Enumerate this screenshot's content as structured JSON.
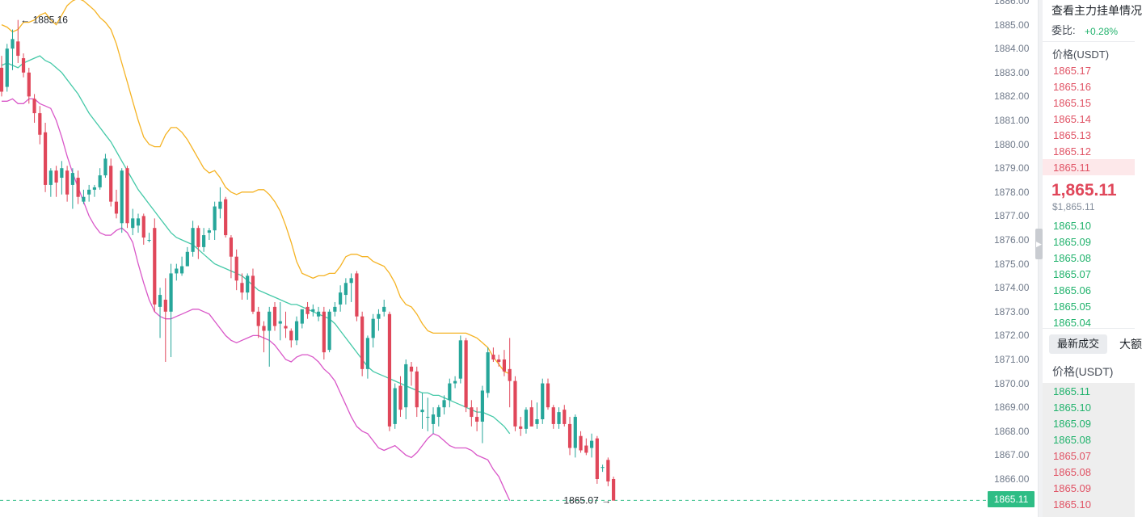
{
  "colors": {
    "up": "#26a69a",
    "down": "#e0475a",
    "ma_line": "#45c9a8",
    "upper_band": "#f5b324",
    "lower_band": "#d957c8",
    "last_price_tag": "#2ebd85"
  },
  "chart_data": {
    "type": "candlestick",
    "y_range": [
      1864.5,
      1886.0
    ],
    "y_ticks": [
      "1886.00",
      "1885.00",
      "1884.00",
      "1883.00",
      "1882.00",
      "1881.00",
      "1880.00",
      "1879.00",
      "1878.00",
      "1877.00",
      "1876.00",
      "1875.00",
      "1874.00",
      "1873.00",
      "1872.00",
      "1871.00",
      "1870.00",
      "1869.00",
      "1868.00",
      "1867.00",
      "1866.00"
    ],
    "high_annotation": "← 1885.16",
    "low_annotation": "1865.07 →",
    "last_price": "1865.11",
    "series": [
      {
        "type": "line",
        "key": "upper",
        "values": [
          1885.0,
          1884.9,
          1884.7,
          1884.8,
          1885.1,
          1885.1,
          1885.2,
          1885.4,
          1885.5,
          1885.2,
          1885.0,
          1885.4,
          1885.8,
          1886.0,
          1886.1,
          1886.0,
          1885.8,
          1885.6,
          1885.3,
          1885.1,
          1884.8,
          1884.2,
          1883.4,
          1882.6,
          1881.8,
          1881.0,
          1880.3,
          1880.0,
          1879.9,
          1879.9,
          1880.4,
          1880.7,
          1880.7,
          1880.5,
          1880.2,
          1879.8,
          1879.4,
          1879.0,
          1878.8,
          1878.9,
          1878.6,
          1878.2,
          1878.0,
          1877.9,
          1878.0,
          1878.0,
          1878.0,
          1878.1,
          1878.1,
          1877.9,
          1877.6,
          1877.2,
          1876.6,
          1875.9,
          1875.1,
          1874.6,
          1874.5,
          1874.4,
          1874.5,
          1874.5,
          1874.6,
          1874.6,
          1874.9,
          1875.3,
          1875.4,
          1875.4,
          1875.3,
          1875.3,
          1875.1,
          1875.0,
          1874.9,
          1874.6,
          1874.2,
          1873.6,
          1873.3,
          1873.2,
          1872.9,
          1872.5,
          1872.2,
          1872.1,
          1872.1,
          1872.1,
          1872.1,
          1872.1,
          1872.1,
          1872.1,
          1872.0,
          1871.9,
          1871.7,
          1871.5,
          1871.1,
          1870.8,
          1870.5,
          1870.4
        ]
      },
      {
        "type": "line",
        "key": "ma",
        "values": [
          1883.3,
          1883.4,
          1883.3,
          1883.2,
          1883.4,
          1883.5,
          1883.6,
          1883.7,
          1883.5,
          1883.4,
          1883.2,
          1883.0,
          1882.7,
          1882.4,
          1882.1,
          1881.7,
          1881.3,
          1881.0,
          1880.7,
          1880.4,
          1880.1,
          1879.7,
          1879.3,
          1878.9,
          1878.5,
          1878.1,
          1877.8,
          1877.5,
          1877.2,
          1876.9,
          1876.6,
          1876.3,
          1876.1,
          1876.0,
          1875.9,
          1875.8,
          1875.6,
          1875.4,
          1875.2,
          1875.0,
          1874.9,
          1874.8,
          1874.7,
          1874.6,
          1874.5,
          1874.3,
          1874.1,
          1873.9,
          1873.8,
          1873.7,
          1873.6,
          1873.5,
          1873.4,
          1873.3,
          1873.3,
          1873.2,
          1873.1,
          1873.0,
          1872.9,
          1872.8,
          1872.7,
          1872.5,
          1872.2,
          1871.9,
          1871.6,
          1871.3,
          1871.0,
          1870.7,
          1870.5,
          1870.4,
          1870.3,
          1870.2,
          1870.1,
          1870.0,
          1869.9,
          1869.8,
          1869.7,
          1869.6,
          1869.6,
          1869.5,
          1869.5,
          1869.4,
          1869.3,
          1869.2,
          1869.1,
          1869.0,
          1868.9,
          1868.8,
          1868.8,
          1868.7,
          1868.6,
          1868.4,
          1868.2,
          1867.9
        ]
      },
      {
        "type": "line",
        "key": "lower",
        "values": [
          1881.8,
          1881.8,
          1881.9,
          1881.7,
          1881.7,
          1881.9,
          1881.9,
          1881.7,
          1881.6,
          1881.5,
          1881.0,
          1880.3,
          1879.5,
          1878.8,
          1878.2,
          1877.6,
          1877.0,
          1876.6,
          1876.3,
          1876.2,
          1876.2,
          1876.4,
          1876.5,
          1876.3,
          1875.9,
          1875.0,
          1874.2,
          1873.5,
          1873.0,
          1872.8,
          1872.7,
          1872.7,
          1872.8,
          1872.9,
          1873.0,
          1873.1,
          1873.1,
          1873.0,
          1872.9,
          1872.6,
          1872.3,
          1872.0,
          1871.8,
          1871.7,
          1871.8,
          1871.9,
          1872.0,
          1872.0,
          1871.9,
          1871.8,
          1871.6,
          1871.3,
          1871.0,
          1870.9,
          1871.1,
          1871.2,
          1871.2,
          1871.1,
          1870.9,
          1870.6,
          1870.4,
          1870.1,
          1869.6,
          1869.1,
          1868.6,
          1868.2,
          1868.0,
          1867.9,
          1867.6,
          1867.3,
          1867.2,
          1867.3,
          1867.4,
          1867.2,
          1867.0,
          1866.9,
          1867.1,
          1867.4,
          1867.7,
          1867.9,
          1867.8,
          1867.6,
          1867.4,
          1867.3,
          1867.3,
          1867.3,
          1867.2,
          1867.0,
          1866.9,
          1866.8,
          1866.4,
          1866.1,
          1865.6,
          1865.1
        ]
      },
      {
        "type": "candle",
        "key": "ohlc",
        "values": [
          [
            1883.2,
            1883.7,
            1882.0,
            1882.2
          ],
          [
            1882.4,
            1884.2,
            1882.2,
            1884.0
          ],
          [
            1884.0,
            1884.8,
            1883.1,
            1884.4
          ],
          [
            1884.3,
            1885.2,
            1883.4,
            1883.7
          ],
          [
            1883.6,
            1883.8,
            1882.8,
            1883.0
          ],
          [
            1883.0,
            1883.2,
            1881.7,
            1882.0
          ],
          [
            1881.9,
            1882.1,
            1880.9,
            1881.3
          ],
          [
            1881.3,
            1881.6,
            1880.0,
            1880.4
          ],
          [
            1880.5,
            1880.9,
            1878.0,
            1878.3
          ],
          [
            1878.3,
            1879.0,
            1877.8,
            1878.9
          ],
          [
            1878.9,
            1879.1,
            1877.8,
            1878.4
          ],
          [
            1878.6,
            1879.3,
            1877.9,
            1879.0
          ],
          [
            1878.9,
            1879.1,
            1877.6,
            1877.9
          ],
          [
            1878.3,
            1879.0,
            1877.3,
            1878.8
          ],
          [
            1878.6,
            1878.9,
            1877.5,
            1877.8
          ],
          [
            1877.6,
            1878.1,
            1877.5,
            1877.8
          ],
          [
            1877.9,
            1878.3,
            1877.6,
            1878.1
          ],
          [
            1878.1,
            1878.3,
            1877.8,
            1878.2
          ],
          [
            1878.2,
            1879.0,
            1878.1,
            1878.7
          ],
          [
            1878.7,
            1879.6,
            1878.6,
            1879.4
          ],
          [
            1879.1,
            1879.4,
            1877.4,
            1877.6
          ],
          [
            1877.6,
            1878.1,
            1876.9,
            1877.1
          ],
          [
            1876.7,
            1879.0,
            1876.3,
            1878.9
          ],
          [
            1879.0,
            1879.1,
            1876.5,
            1876.7
          ],
          [
            1876.5,
            1877.3,
            1876.2,
            1876.9
          ],
          [
            1876.6,
            1877.1,
            1876.3,
            1876.9
          ],
          [
            1877.0,
            1877.1,
            1875.8,
            1876.1
          ],
          [
            1876.0,
            1876.3,
            1875.9,
            1876.0
          ],
          [
            1876.5,
            1876.9,
            1873.0,
            1873.3
          ],
          [
            1873.2,
            1874.0,
            1871.9,
            1873.7
          ],
          [
            1873.5,
            1874.4,
            1870.9,
            1873.0
          ],
          [
            1873.0,
            1875.0,
            1871.1,
            1874.6
          ],
          [
            1874.6,
            1875.0,
            1874.3,
            1874.8
          ],
          [
            1874.6,
            1875.3,
            1874.5,
            1874.9
          ],
          [
            1874.9,
            1875.7,
            1874.9,
            1875.5
          ],
          [
            1875.5,
            1876.8,
            1875.3,
            1876.5
          ],
          [
            1876.5,
            1876.6,
            1875.2,
            1875.7
          ],
          [
            1875.7,
            1876.5,
            1875.5,
            1876.2
          ],
          [
            1876.3,
            1876.5,
            1876.0,
            1876.4
          ],
          [
            1876.4,
            1877.6,
            1876.0,
            1877.4
          ],
          [
            1877.3,
            1878.2,
            1876.9,
            1877.6
          ],
          [
            1877.7,
            1877.8,
            1876.1,
            1876.2
          ],
          [
            1876.1,
            1876.2,
            1874.4,
            1875.3
          ],
          [
            1875.3,
            1875.6,
            1873.9,
            1874.3
          ],
          [
            1874.2,
            1874.6,
            1873.5,
            1873.8
          ],
          [
            1873.8,
            1874.6,
            1873.5,
            1874.5
          ],
          [
            1874.5,
            1874.8,
            1872.9,
            1873.0
          ],
          [
            1873.0,
            1873.2,
            1871.9,
            1872.4
          ],
          [
            1872.4,
            1872.6,
            1871.3,
            1872.2
          ],
          [
            1872.2,
            1873.2,
            1870.7,
            1873.0
          ],
          [
            1873.2,
            1873.4,
            1872.2,
            1872.4
          ],
          [
            1872.5,
            1873.4,
            1871.8,
            1872.6
          ],
          [
            1872.4,
            1873.0,
            1871.9,
            1872.3
          ],
          [
            1872.2,
            1872.3,
            1871.5,
            1871.8
          ],
          [
            1871.8,
            1872.8,
            1871.6,
            1872.6
          ],
          [
            1872.5,
            1873.1,
            1872.3,
            1873.1
          ],
          [
            1873.2,
            1873.4,
            1872.7,
            1872.9
          ],
          [
            1873.0,
            1873.3,
            1872.8,
            1873.1
          ],
          [
            1872.8,
            1873.2,
            1872.6,
            1873.0
          ],
          [
            1873.0,
            1873.2,
            1871.0,
            1871.3
          ],
          [
            1871.4,
            1873.1,
            1871.3,
            1873.0
          ],
          [
            1873.0,
            1873.4,
            1872.8,
            1873.2
          ],
          [
            1873.3,
            1874.1,
            1873.0,
            1873.8
          ],
          [
            1873.7,
            1874.4,
            1873.3,
            1874.2
          ],
          [
            1874.2,
            1874.6,
            1873.4,
            1874.4
          ],
          [
            1874.6,
            1874.7,
            1872.6,
            1872.8
          ],
          [
            1872.8,
            1873.0,
            1870.3,
            1870.6
          ],
          [
            1870.6,
            1872.0,
            1870.2,
            1871.9
          ],
          [
            1871.9,
            1872.9,
            1871.5,
            1872.7
          ],
          [
            1872.7,
            1873.1,
            1872.2,
            1872.9
          ],
          [
            1873.0,
            1873.5,
            1872.8,
            1873.2
          ],
          [
            1872.9,
            1873.0,
            1868.0,
            1868.2
          ],
          [
            1868.3,
            1870.0,
            1868.1,
            1869.8
          ],
          [
            1869.9,
            1870.3,
            1868.6,
            1868.9
          ],
          [
            1869.0,
            1871.0,
            1868.5,
            1870.8
          ],
          [
            1870.7,
            1870.9,
            1869.9,
            1870.5
          ],
          [
            1870.5,
            1870.7,
            1868.6,
            1869.0
          ],
          [
            1868.8,
            1869.6,
            1868.1,
            1868.9
          ],
          [
            1868.6,
            1869.4,
            1868.0,
            1868.6
          ],
          [
            1868.3,
            1869.0,
            1867.9,
            1868.7
          ],
          [
            1868.6,
            1869.1,
            1868.2,
            1869.0
          ],
          [
            1869.0,
            1869.5,
            1868.7,
            1869.3
          ],
          [
            1869.3,
            1870.2,
            1869.0,
            1870.0
          ],
          [
            1870.0,
            1870.3,
            1869.8,
            1870.1
          ],
          [
            1870.2,
            1872.0,
            1870.0,
            1871.8
          ],
          [
            1871.8,
            1871.9,
            1868.8,
            1869.0
          ],
          [
            1869.0,
            1869.3,
            1868.2,
            1868.6
          ],
          [
            1868.6,
            1869.0,
            1868.0,
            1868.4
          ],
          [
            1868.4,
            1869.9,
            1867.5,
            1869.7
          ],
          [
            1869.6,
            1871.5,
            1869.4,
            1871.3
          ],
          [
            1871.2,
            1871.5,
            1870.9,
            1871.0
          ],
          [
            1871.0,
            1871.2,
            1870.7,
            1870.9
          ],
          [
            1871.0,
            1871.4,
            1870.3,
            1870.5
          ],
          [
            1870.6,
            1871.9,
            1869.0,
            1870.1
          ],
          [
            1870.1,
            1870.3,
            1868.0,
            1868.2
          ],
          [
            1868.2,
            1868.6,
            1867.8,
            1868.1
          ],
          [
            1868.1,
            1869.0,
            1867.9,
            1868.9
          ],
          [
            1869.0,
            1869.3,
            1868.2,
            1868.2
          ],
          [
            1868.3,
            1869.2,
            1868.1,
            1868.5
          ],
          [
            1868.5,
            1870.2,
            1868.3,
            1870.0
          ],
          [
            1870.0,
            1870.2,
            1868.9,
            1869.0
          ],
          [
            1869.0,
            1869.1,
            1868.1,
            1868.3
          ],
          [
            1868.3,
            1869.0,
            1868.1,
            1868.8
          ],
          [
            1868.9,
            1869.1,
            1868.2,
            1868.3
          ],
          [
            1868.3,
            1868.6,
            1867.0,
            1867.3
          ],
          [
            1867.3,
            1868.7,
            1866.9,
            1868.6
          ],
          [
            1867.8,
            1868.0,
            1867.1,
            1867.2
          ],
          [
            1867.4,
            1867.7,
            1867.0,
            1867.1
          ],
          [
            1867.3,
            1867.9,
            1866.9,
            1867.6
          ],
          [
            1867.7,
            1867.8,
            1865.8,
            1866.0
          ],
          [
            1866.5,
            1866.6,
            1866.3,
            1866.5
          ],
          [
            1866.8,
            1866.9,
            1865.7,
            1865.9
          ],
          [
            1866.0,
            1866.1,
            1865.1,
            1865.1
          ]
        ]
      }
    ]
  },
  "panel": {
    "title": "查看主力挂单情况",
    "ratio_label": "委比:",
    "ratio_value": "+0.28%",
    "price_header": "价格(USDT)",
    "asks": [
      "1865.17",
      "1865.16",
      "1865.15",
      "1865.14",
      "1865.13",
      "1865.12",
      "1865.11"
    ],
    "current_price": "1,865.11",
    "current_usd": "$1,865.11",
    "bids": [
      "1865.10",
      "1865.09",
      "1865.08",
      "1865.07",
      "1865.06",
      "1865.05",
      "1865.04"
    ],
    "trades_tab": "最新成交",
    "trades_tab_2": "大额",
    "trades_header": "价格(USDT)",
    "trades": [
      {
        "price": "1865.11",
        "side": "buy"
      },
      {
        "price": "1865.10",
        "side": "buy"
      },
      {
        "price": "1865.09",
        "side": "buy"
      },
      {
        "price": "1865.08",
        "side": "buy"
      },
      {
        "price": "1865.07",
        "side": "sell"
      },
      {
        "price": "1865.08",
        "side": "sell"
      },
      {
        "price": "1865.09",
        "side": "sell"
      },
      {
        "price": "1865.10",
        "side": "sell"
      }
    ]
  }
}
